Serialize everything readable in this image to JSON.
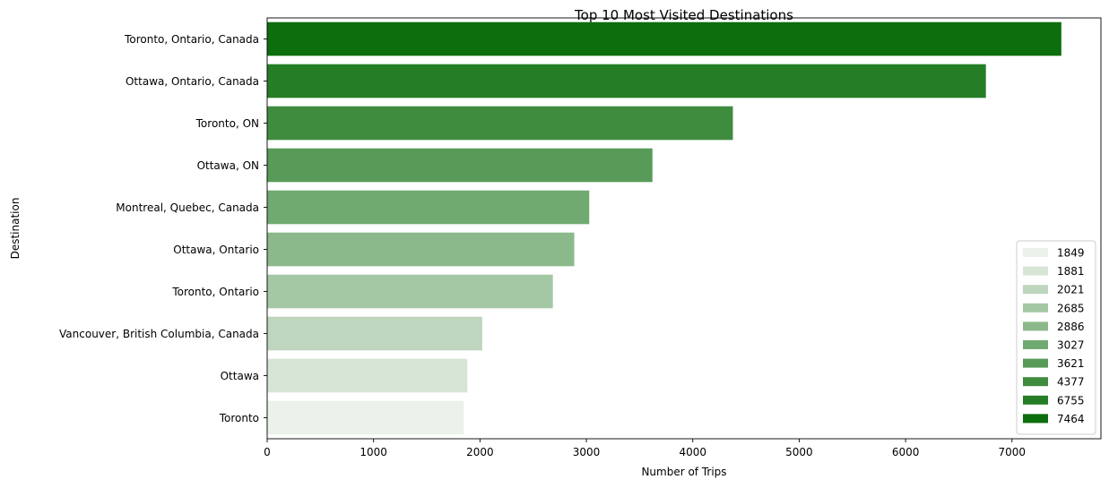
{
  "chart_data": {
    "type": "bar",
    "orientation": "horizontal",
    "title": "Top 10 Most Visited Destinations",
    "xlabel": "Number of Trips",
    "ylabel": "Destination",
    "xlim": [
      0,
      7836
    ],
    "xticks": [
      0,
      1000,
      2000,
      3000,
      4000,
      5000,
      6000,
      7000
    ],
    "grid": false,
    "legend_position": "lower-right",
    "categories": [
      "Toronto, Ontario, Canada",
      "Ottawa, Ontario, Canada",
      "Toronto, ON",
      "Ottawa, ON",
      "Montreal, Quebec, Canada",
      "Ottawa, Ontario",
      "Toronto, Ontario",
      "Vancouver, British Columbia, Canada",
      "Ottawa",
      "Toronto"
    ],
    "values": [
      7464,
      6755,
      4377,
      3621,
      3027,
      2886,
      2685,
      2021,
      1881,
      1849
    ],
    "colors": [
      "#0c6e0c",
      "#257d25",
      "#3f8c3f",
      "#589b58",
      "#71aa71",
      "#8bb98b",
      "#a4c8a4",
      "#bdd6bd",
      "#d6e5d6",
      "#eaf2ea"
    ],
    "legend": [
      {
        "label": "1849",
        "color": "#eaf2ea"
      },
      {
        "label": "1881",
        "color": "#d6e5d6"
      },
      {
        "label": "2021",
        "color": "#bdd6bd"
      },
      {
        "label": "2685",
        "color": "#a4c8a4"
      },
      {
        "label": "2886",
        "color": "#8bb98b"
      },
      {
        "label": "3027",
        "color": "#71aa71"
      },
      {
        "label": "3621",
        "color": "#589b58"
      },
      {
        "label": "4377",
        "color": "#3f8c3f"
      },
      {
        "label": "6755",
        "color": "#257d25"
      },
      {
        "label": "7464",
        "color": "#0c6e0c"
      }
    ]
  }
}
